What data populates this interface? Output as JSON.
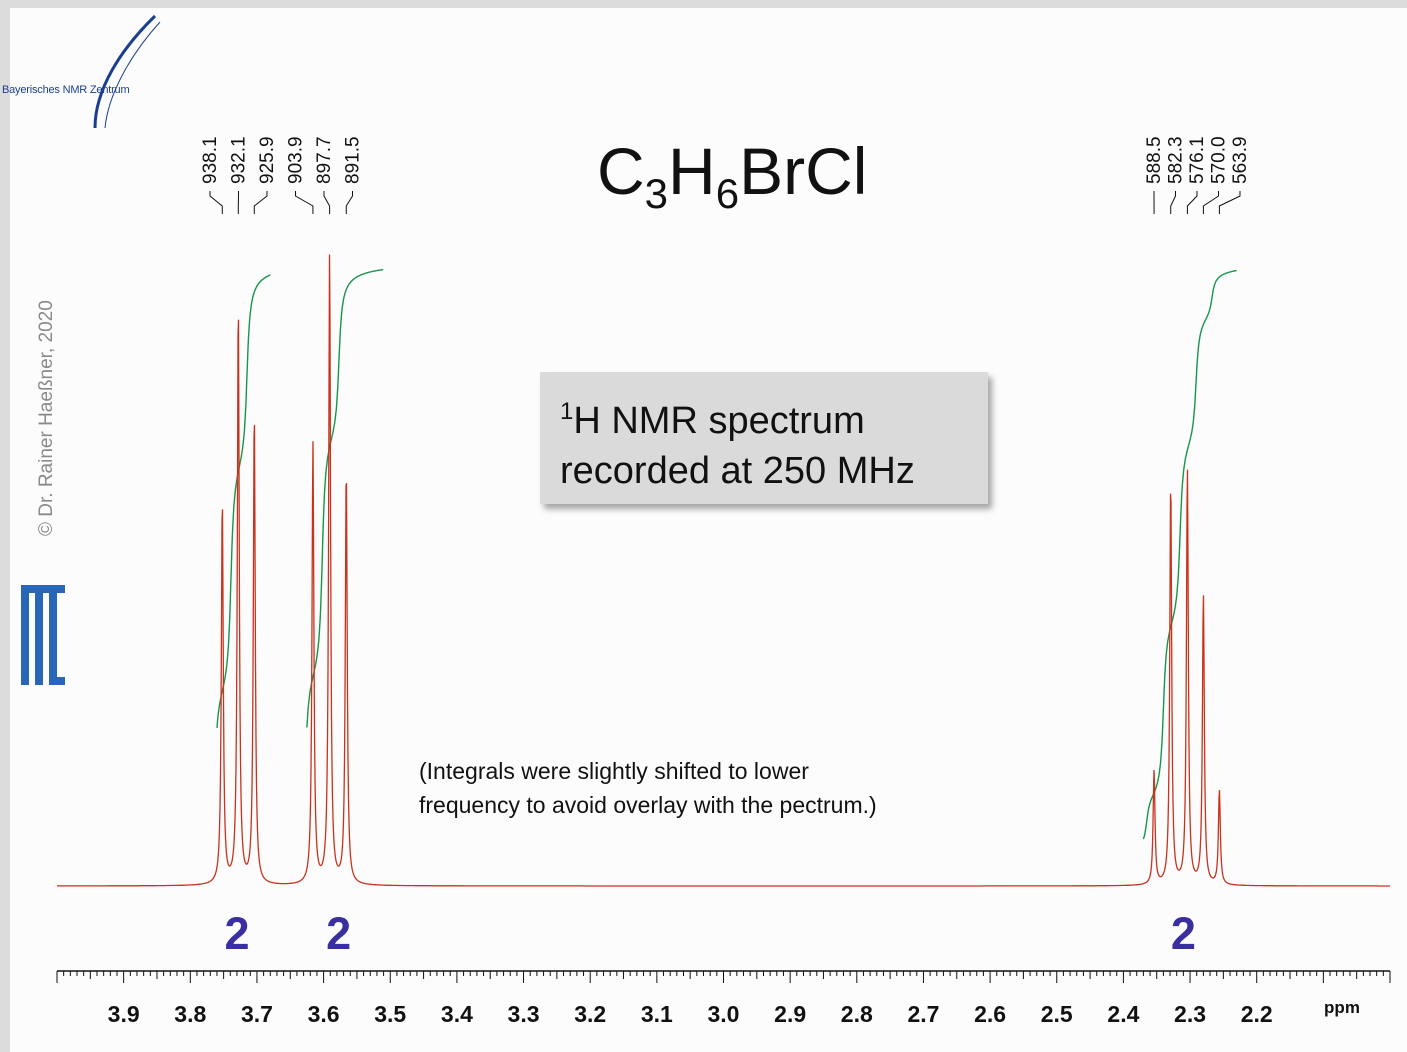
{
  "logo_text": "Bayerisches NMR Zentrum",
  "copyright": "© Dr. Rainer Haeßner, 2020",
  "formula": {
    "c": "C",
    "c_n": "3",
    "h": "H",
    "h_n": "6",
    "rest": "BrCl"
  },
  "info_box": {
    "sup": "1",
    "line1": "H NMR spectrum",
    "line2": "recorded at 250 MHz"
  },
  "note": {
    "line1": "(Integrals were slightly  shifted to lower",
    "line2": "frequency to avoid overlay with the pectrum.)"
  },
  "colors": {
    "spectrum": "#c8321e",
    "integral": "#17954a",
    "integral_label": "#3a2f9e",
    "logo": "#1b3f8f"
  },
  "chart_data": {
    "type": "line",
    "title": "C3H6BrCl",
    "xlabel": "ppm",
    "xlim": [
      4.0,
      2.0
    ],
    "x_reversed": true,
    "x_ticks": [
      "3.9",
      "3.8",
      "3.7",
      "3.6",
      "3.5",
      "3.4",
      "3.3",
      "3.2",
      "3.1",
      "3.0",
      "2.9",
      "2.8",
      "2.7",
      "2.6",
      "2.5",
      "2.4",
      "2.3",
      "2.2"
    ],
    "peak_labels_hz": [
      "938.1",
      "932.1",
      "925.9",
      "903.9",
      "897.7",
      "891.5",
      "588.5",
      "582.3",
      "576.1",
      "570.0",
      "563.9"
    ],
    "peaks": [
      {
        "ppm": 3.752,
        "rel_height": 0.61
      },
      {
        "ppm": 3.728,
        "rel_height": 0.92
      },
      {
        "ppm": 3.704,
        "rel_height": 0.75
      },
      {
        "ppm": 3.616,
        "rel_height": 0.7
      },
      {
        "ppm": 3.591,
        "rel_height": 1.0
      },
      {
        "ppm": 3.566,
        "rel_height": 0.66
      },
      {
        "ppm": 2.354,
        "rel_height": 0.18
      },
      {
        "ppm": 2.329,
        "rel_height": 0.64
      },
      {
        "ppm": 2.304,
        "rel_height": 0.66
      },
      {
        "ppm": 2.28,
        "rel_height": 0.46
      },
      {
        "ppm": 2.256,
        "rel_height": 0.15
      }
    ],
    "integrals": [
      {
        "from_ppm": 3.76,
        "to_ppm": 3.68,
        "value": "2"
      },
      {
        "from_ppm": 3.625,
        "to_ppm": 3.51,
        "value": "2"
      },
      {
        "from_ppm": 2.37,
        "to_ppm": 2.23,
        "value": "2"
      }
    ]
  }
}
